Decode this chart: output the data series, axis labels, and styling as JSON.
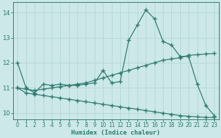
{
  "xlabel": "Humidex (Indice chaleur)",
  "bg_color": "#cce8e8",
  "line_color": "#2d7a6e",
  "grid_color": "#b8d8d8",
  "xlim": [
    -0.5,
    23.5
  ],
  "ylim": [
    9.75,
    14.4
  ],
  "yticks": [
    10,
    11,
    12,
    13,
    14
  ],
  "xticks": [
    0,
    1,
    2,
    3,
    4,
    5,
    6,
    7,
    8,
    9,
    10,
    11,
    12,
    13,
    14,
    15,
    16,
    17,
    18,
    19,
    20,
    21,
    22,
    23
  ],
  "line1_x": [
    0,
    1,
    2,
    3,
    4,
    5,
    6,
    7,
    8,
    9,
    10,
    11,
    12,
    13,
    14,
    15,
    16,
    17,
    18,
    19,
    20,
    21,
    22,
    23
  ],
  "line1_y": [
    12.0,
    11.0,
    10.8,
    11.15,
    11.1,
    11.15,
    11.1,
    11.1,
    11.15,
    11.2,
    11.7,
    11.2,
    11.25,
    12.9,
    13.5,
    14.1,
    13.75,
    12.85,
    12.7,
    12.25,
    12.25,
    11.15,
    10.3,
    9.9
  ],
  "line2_x": [
    0,
    1,
    2,
    3,
    4,
    5,
    6,
    7,
    8,
    9,
    10,
    11,
    12,
    13,
    14,
    15,
    16,
    17,
    18,
    19,
    20,
    21,
    22,
    23
  ],
  "line2_y": [
    11.0,
    10.95,
    10.9,
    10.95,
    11.0,
    11.05,
    11.1,
    11.15,
    11.2,
    11.3,
    11.4,
    11.5,
    11.6,
    11.7,
    11.8,
    11.9,
    12.0,
    12.1,
    12.15,
    12.2,
    12.3,
    12.32,
    12.35,
    12.37
  ],
  "line3_x": [
    0,
    1,
    2,
    3,
    4,
    5,
    6,
    7,
    8,
    9,
    10,
    11,
    12,
    13,
    14,
    15,
    16,
    17,
    18,
    19,
    20,
    21,
    22,
    23
  ],
  "line3_y": [
    11.0,
    10.8,
    10.75,
    10.7,
    10.65,
    10.6,
    10.55,
    10.5,
    10.45,
    10.4,
    10.35,
    10.3,
    10.25,
    10.2,
    10.15,
    10.1,
    10.05,
    10.0,
    9.95,
    9.9,
    9.87,
    9.85,
    9.83,
    9.82
  ]
}
